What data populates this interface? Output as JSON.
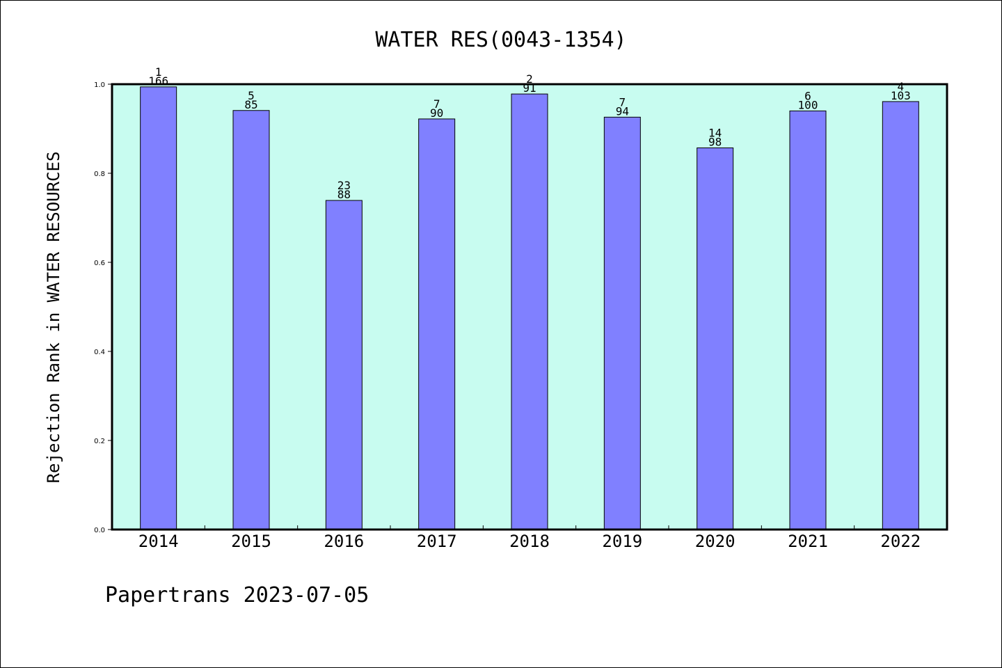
{
  "footer": "Papertrans 2023-07-05",
  "chart_data": {
    "type": "bar",
    "title": "WATER RES(0043-1354)",
    "xlabel": "",
    "ylabel": "Rejection Rank in WATER RESOURCES",
    "ylim": [
      0,
      1.0
    ],
    "yticks": [
      "0.0",
      "0.2",
      "0.4",
      "0.6",
      "0.8",
      "1.0"
    ],
    "grid": false,
    "plot_background": "#c8fcf0",
    "bar_color": "#8080ff",
    "categories": [
      "2014",
      "2015",
      "2016",
      "2017",
      "2018",
      "2019",
      "2020",
      "2021",
      "2022"
    ],
    "values": [
      0.994,
      0.941,
      0.739,
      0.922,
      0.978,
      0.926,
      0.857,
      0.94,
      0.961
    ],
    "labels_top": [
      "1",
      "5",
      "23",
      "7",
      "2",
      "7",
      "14",
      "6",
      "4"
    ],
    "labels_bottom": [
      "166",
      "85",
      "88",
      "90",
      "91",
      "94",
      "98",
      "100",
      "103"
    ]
  }
}
